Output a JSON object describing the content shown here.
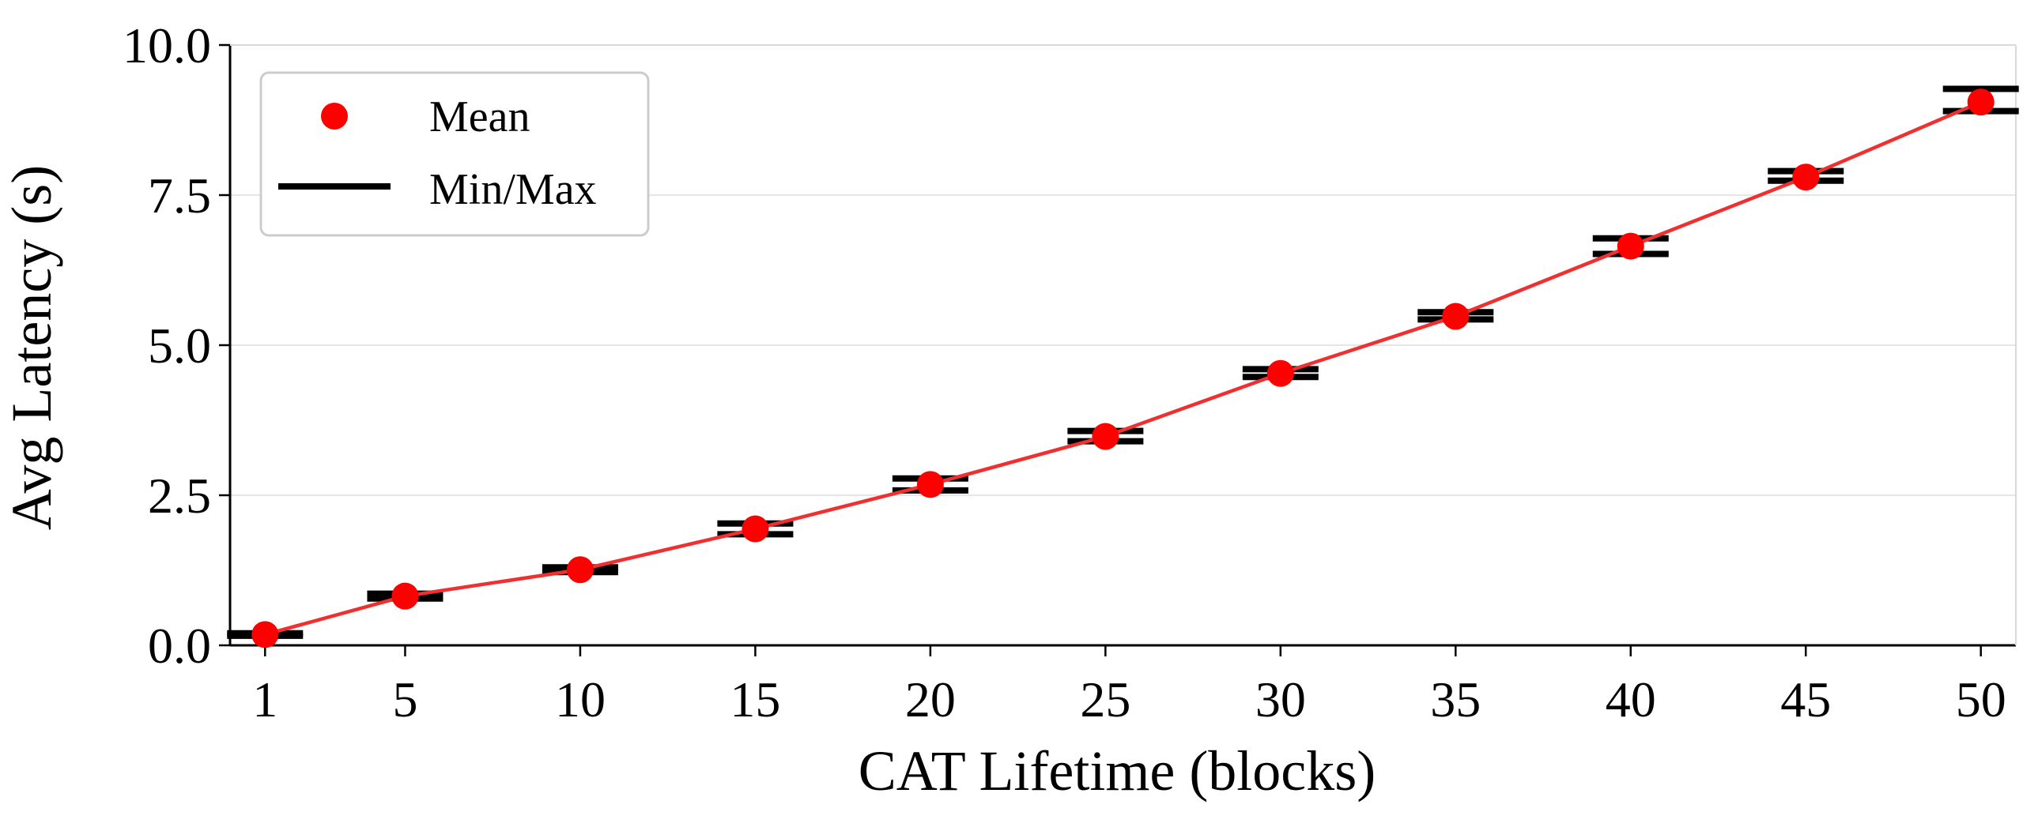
{
  "chart_data": {
    "type": "line",
    "xlabel": "CAT Lifetime (blocks)",
    "ylabel": "Avg Latency (s)",
    "ylim": [
      0,
      10
    ],
    "x_ticks": [
      "1",
      "5",
      "10",
      "15",
      "20",
      "25",
      "30",
      "35",
      "40",
      "45",
      "50"
    ],
    "y_ticks": [
      "0.0",
      "2.5",
      "5.0",
      "7.5",
      "10.0"
    ],
    "grid": "horizontal",
    "legend_position": "top-left",
    "legend": [
      "Mean",
      "Min/Max"
    ],
    "colors": {
      "mean": "#ff0000",
      "line": "#f03030",
      "minmax": "#000000",
      "grid": "#e6e6e6"
    },
    "x": [
      1,
      5,
      10,
      15,
      20,
      25,
      30,
      35,
      40,
      45,
      50
    ],
    "series": [
      {
        "name": "Mean",
        "values": [
          0.18,
          0.82,
          1.26,
          1.94,
          2.68,
          3.48,
          4.53,
          5.48,
          6.65,
          7.8,
          9.05
        ]
      },
      {
        "name": "Min/Max",
        "min": [
          0.16,
          0.78,
          1.22,
          1.85,
          2.58,
          3.4,
          4.47,
          5.43,
          6.52,
          7.74,
          8.9
        ],
        "max": [
          0.2,
          0.86,
          1.3,
          2.03,
          2.78,
          3.57,
          4.6,
          5.55,
          6.78,
          7.9,
          9.27
        ]
      }
    ]
  }
}
